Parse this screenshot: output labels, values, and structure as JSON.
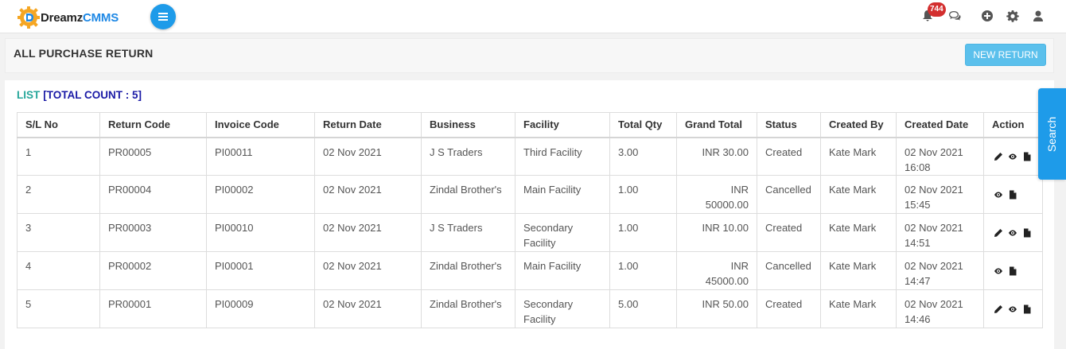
{
  "app": {
    "logo_part1": "Dreamz",
    "logo_part2": "CMMS"
  },
  "header": {
    "notification_count": "744"
  },
  "page": {
    "title": "ALL PURCHASE RETURN",
    "new_button": "NEW RETURN"
  },
  "list": {
    "label": "LIST",
    "count_label": "[TOTAL COUNT : 5]"
  },
  "search_tab": "Search",
  "table": {
    "columns": [
      "S/L No",
      "Return Code",
      "Invoice Code",
      "Return Date",
      "Business",
      "Facility",
      "Total Qty",
      "Grand Total",
      "Status",
      "Created By",
      "Created Date",
      "Action"
    ],
    "rows": [
      {
        "sl": "1",
        "return_code": "PR00005",
        "invoice_code": "PI00011",
        "return_date": "02 Nov 2021",
        "business": "J S Traders",
        "facility": "Third Facility",
        "qty": "3.00",
        "total": "INR 30.00",
        "status": "Created",
        "created_by": "Kate Mark",
        "created_date": "02 Nov 2021 16:08",
        "actions": [
          "edit-icon",
          "view-icon",
          "document-icon"
        ]
      },
      {
        "sl": "2",
        "return_code": "PR00004",
        "invoice_code": "PI00002",
        "return_date": "02 Nov 2021",
        "business": "Zindal Brother's",
        "facility": "Main Facility",
        "qty": "1.00",
        "total": "INR 50000.00",
        "status": "Cancelled",
        "created_by": "Kate Mark",
        "created_date": "02 Nov 2021 15:45",
        "actions": [
          "view-icon",
          "document-icon"
        ]
      },
      {
        "sl": "3",
        "return_code": "PR00003",
        "invoice_code": "PI00010",
        "return_date": "02 Nov 2021",
        "business": "J S Traders",
        "facility": "Secondary Facility",
        "qty": "1.00",
        "total": "INR 10.00",
        "status": "Created",
        "created_by": "Kate Mark",
        "created_date": "02 Nov 2021 14:51",
        "actions": [
          "edit-icon",
          "view-icon",
          "document-icon"
        ]
      },
      {
        "sl": "4",
        "return_code": "PR00002",
        "invoice_code": "PI00001",
        "return_date": "02 Nov 2021",
        "business": "Zindal Brother's",
        "facility": "Main Facility",
        "qty": "1.00",
        "total": "INR 45000.00",
        "status": "Cancelled",
        "created_by": "Kate Mark",
        "created_date": "02 Nov 2021 14:47",
        "actions": [
          "view-icon",
          "document-icon"
        ]
      },
      {
        "sl": "5",
        "return_code": "PR00001",
        "invoice_code": "PI00009",
        "return_date": "02 Nov 2021",
        "business": "Zindal Brother's",
        "facility": "Secondary Facility",
        "qty": "5.00",
        "total": "INR 50.00",
        "status": "Created",
        "created_by": "Kate Mark",
        "created_date": "02 Nov 2021 14:46",
        "actions": [
          "edit-icon",
          "view-icon",
          "document-icon"
        ]
      }
    ]
  },
  "colors": {
    "primary": "#1e9be9",
    "new_button": "#5bc0ec",
    "list_label": "#26a69a",
    "count_label": "#1a1aa6",
    "badge": "#d32f2f"
  }
}
